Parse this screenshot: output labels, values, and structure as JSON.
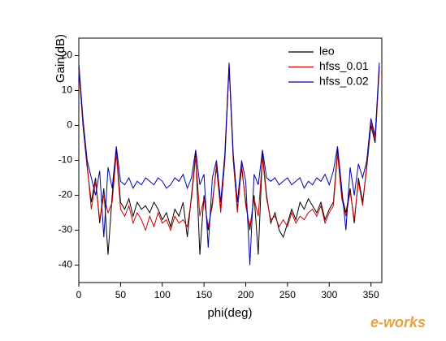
{
  "chart_data": {
    "type": "line",
    "xlabel": "phi(deg)",
    "ylabel": "Gain(dB)",
    "x": [
      0,
      5,
      10,
      15,
      20,
      25,
      30,
      35,
      40,
      45,
      50,
      55,
      60,
      65,
      70,
      75,
      80,
      85,
      90,
      95,
      100,
      105,
      110,
      115,
      120,
      125,
      130,
      135,
      140,
      145,
      150,
      155,
      160,
      165,
      170,
      175,
      180,
      185,
      190,
      195,
      200,
      205,
      210,
      215,
      220,
      225,
      230,
      235,
      240,
      245,
      250,
      255,
      260,
      265,
      270,
      275,
      280,
      285,
      290,
      295,
      300,
      305,
      310,
      315,
      320,
      325,
      330,
      335,
      340,
      345,
      350,
      355,
      360
    ],
    "series": [
      {
        "name": "leo",
        "color": "#000000",
        "values": [
          17,
          0,
          -12,
          -22,
          -15,
          -28,
          -18,
          -37,
          -20,
          -7,
          -22,
          -24,
          -21,
          -26,
          -22,
          -24,
          -23,
          -25,
          -22,
          -24,
          -27,
          -25,
          -29,
          -24,
          -26,
          -22,
          -32,
          -20,
          -8,
          -37,
          -20,
          -30,
          -22,
          -12,
          -24,
          -10,
          17,
          -10,
          -24,
          -12,
          -22,
          -30,
          -20,
          -37,
          -8,
          -20,
          -28,
          -25,
          -30,
          -32,
          -28,
          -24,
          -27,
          -22,
          -24,
          -21,
          -23,
          -25,
          -22,
          -27,
          -24,
          -22,
          -7,
          -20,
          -25,
          -18,
          -28,
          -15,
          -22,
          -12,
          0,
          -5,
          17
        ]
      },
      {
        "name": "hfss_0.01",
        "color": "#cc0000",
        "values": [
          16,
          1,
          -11,
          -24,
          -16,
          -27,
          -20,
          -25,
          -22,
          -8,
          -24,
          -26,
          -23,
          -28,
          -25,
          -27,
          -30,
          -26,
          -29,
          -25,
          -28,
          -27,
          -30,
          -26,
          -28,
          -27,
          -29,
          -21,
          -9,
          -26,
          -21,
          -29,
          -23,
          -11,
          -25,
          -9,
          17,
          -9,
          -25,
          -11,
          -23,
          -29,
          -21,
          -26,
          -9,
          -21,
          -27,
          -26,
          -29,
          -27,
          -29,
          -25,
          -28,
          -26,
          -27,
          -25,
          -24,
          -26,
          -23,
          -28,
          -25,
          -23,
          -8,
          -21,
          -26,
          -19,
          -27,
          -16,
          -23,
          -11,
          1,
          -4,
          16
        ]
      },
      {
        "name": "hfss_0.02",
        "color": "#0000aa",
        "values": [
          18,
          2,
          -10,
          -15,
          -20,
          -13,
          -32,
          -12,
          -18,
          -6,
          -16,
          -17,
          -15,
          -18,
          -16,
          -17,
          -15,
          -16,
          -17,
          -15,
          -16,
          -18,
          -17,
          -15,
          -16,
          -14,
          -18,
          -15,
          -7,
          -17,
          -14,
          -35,
          -15,
          -10,
          -22,
          -8,
          18,
          -8,
          -22,
          -10,
          -16,
          -40,
          -14,
          -17,
          -7,
          -15,
          -16,
          -15,
          -17,
          -16,
          -15,
          -17,
          -16,
          -15,
          -18,
          -16,
          -17,
          -15,
          -16,
          -14,
          -17,
          -13,
          -6,
          -18,
          -30,
          -12,
          -20,
          -11,
          -15,
          -10,
          2,
          -3,
          18
        ]
      }
    ],
    "xlim": [
      0,
      363
    ],
    "ylim": [
      -45,
      25
    ],
    "xticks": [
      0,
      50,
      100,
      150,
      200,
      250,
      300,
      350
    ],
    "yticks": [
      -40,
      -30,
      -20,
      -10,
      0,
      10,
      20
    ],
    "grid": false,
    "legend": "upper right",
    "watermark": "e-works"
  }
}
